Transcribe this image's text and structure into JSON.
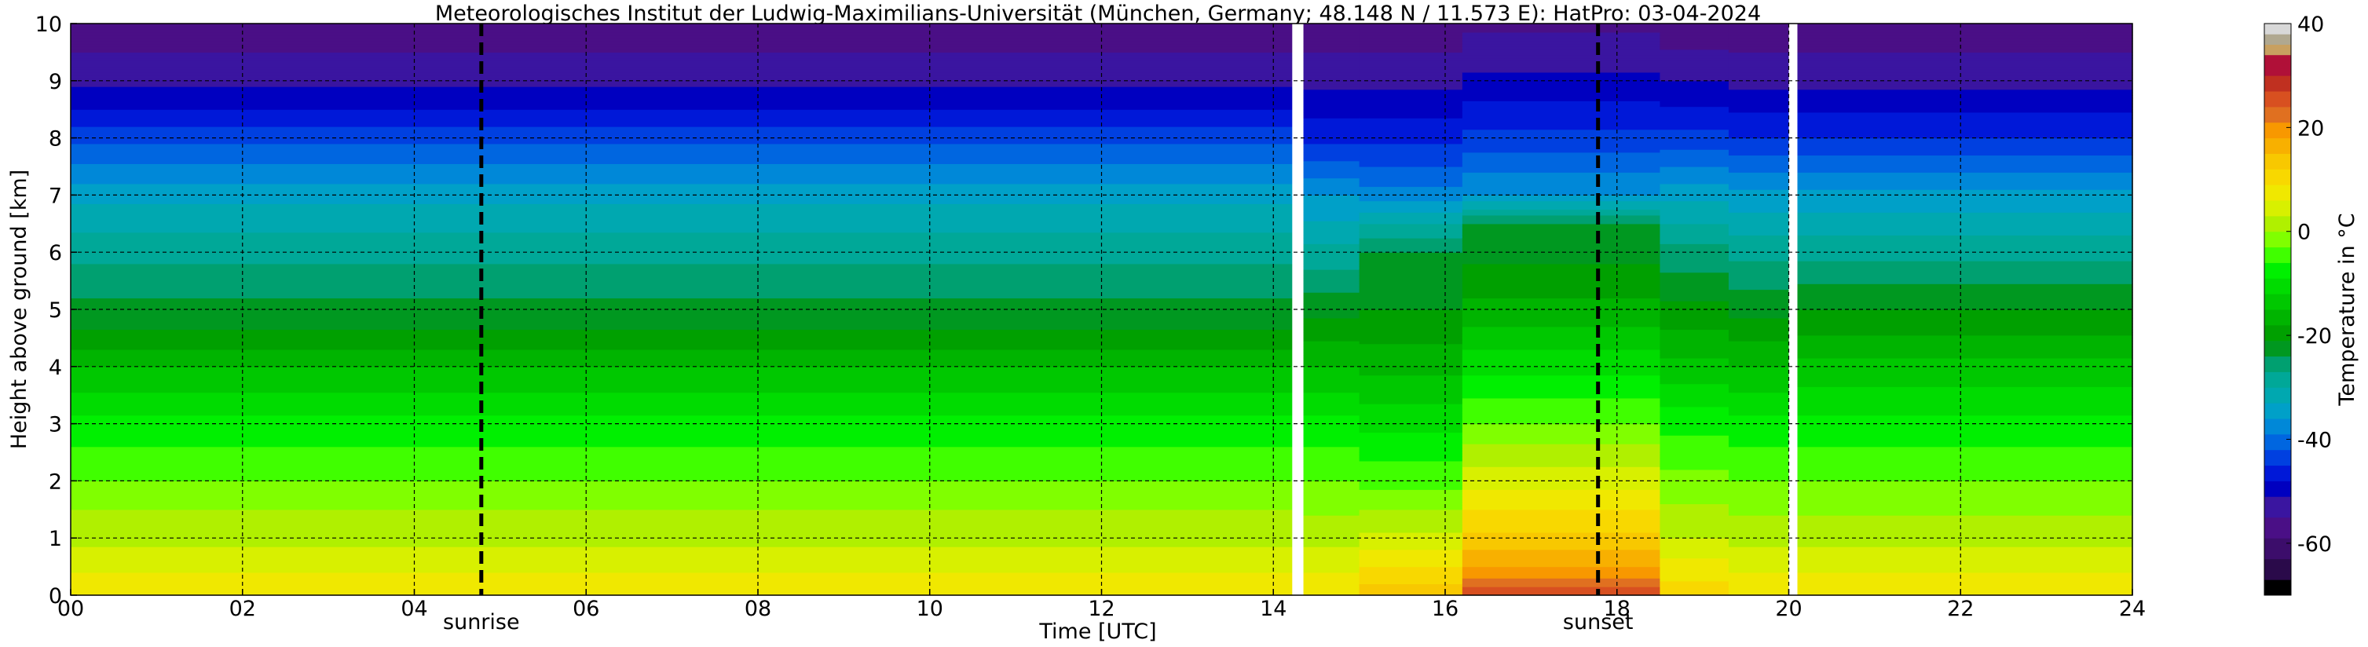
{
  "chart_data": {
    "type": "heatmap",
    "title": "Meteorologisches Institut der Ludwig-Maximilians-Universität (München, Germany; 48.148 N / 11.573 E):    HatPro: 03-04-2024",
    "xlabel": "Time [UTC]",
    "ylabel": "Height above ground [km]",
    "xlim": [
      0,
      24
    ],
    "ylim": [
      0,
      10
    ],
    "x_ticks": [
      "00",
      "02",
      "04",
      "06",
      "08",
      "10",
      "12",
      "14",
      "16",
      "18",
      "20",
      "22",
      "24"
    ],
    "y_ticks": [
      "0",
      "1",
      "2",
      "3",
      "4",
      "5",
      "6",
      "7",
      "8",
      "9",
      "10"
    ],
    "grid": true,
    "colorbar": {
      "label": "Temperature in °C",
      "range": [
        -70,
        40
      ],
      "ticks": [
        "-60",
        "-40",
        "-20",
        "0",
        "20",
        "40"
      ],
      "colors": [
        {
          "from": -70,
          "to": -67,
          "color": "#000000"
        },
        {
          "from": -67,
          "to": -63,
          "color": "#2a0a4a"
        },
        {
          "from": -63,
          "to": -59,
          "color": "#3c0d6b"
        },
        {
          "from": -59,
          "to": -55,
          "color": "#4a0f86"
        },
        {
          "from": -55,
          "to": -51,
          "color": "#3a15a0"
        },
        {
          "from": -51,
          "to": -48,
          "color": "#0000c0"
        },
        {
          "from": -48,
          "to": -45,
          "color": "#0018d8"
        },
        {
          "from": -45,
          "to": -42,
          "color": "#0040e0"
        },
        {
          "from": -42,
          "to": -39,
          "color": "#0066e0"
        },
        {
          "from": -39,
          "to": -36,
          "color": "#0088d8"
        },
        {
          "from": -36,
          "to": -33,
          "color": "#00a0c8"
        },
        {
          "from": -33,
          "to": -30,
          "color": "#00a8b0"
        },
        {
          "from": -30,
          "to": -27,
          "color": "#00a898"
        },
        {
          "from": -27,
          "to": -24,
          "color": "#00a070"
        },
        {
          "from": -24,
          "to": -21,
          "color": "#009820"
        },
        {
          "from": -21,
          "to": -18,
          "color": "#00a000"
        },
        {
          "from": -18,
          "to": -15,
          "color": "#00b400"
        },
        {
          "from": -15,
          "to": -12,
          "color": "#00c800"
        },
        {
          "from": -12,
          "to": -9,
          "color": "#00dc00"
        },
        {
          "from": -9,
          "to": -6,
          "color": "#00f000"
        },
        {
          "from": -6,
          "to": -3,
          "color": "#40ff00"
        },
        {
          "from": -3,
          "to": 0,
          "color": "#80ff00"
        },
        {
          "from": 0,
          "to": 3,
          "color": "#b0f000"
        },
        {
          "from": 3,
          "to": 6,
          "color": "#d8f000"
        },
        {
          "from": 6,
          "to": 9,
          "color": "#f0e800"
        },
        {
          "from": 9,
          "to": 12,
          "color": "#f8d800"
        },
        {
          "from": 12,
          "to": 15,
          "color": "#f8c800"
        },
        {
          "from": 15,
          "to": 18,
          "color": "#f8b000"
        },
        {
          "from": 18,
          "to": 21,
          "color": "#f89800"
        },
        {
          "from": 21,
          "to": 24,
          "color": "#e07020"
        },
        {
          "from": 24,
          "to": 27,
          "color": "#d85020"
        },
        {
          "from": 27,
          "to": 30,
          "color": "#c03020"
        },
        {
          "from": 30,
          "to": 34,
          "color": "#b01038"
        },
        {
          "from": 34,
          "to": 36,
          "color": "#c8a060"
        },
        {
          "from": 36,
          "to": 38,
          "color": "#b0a890"
        },
        {
          "from": 38,
          "to": 40,
          "color": "#d8d8d8"
        }
      ]
    },
    "annotations": [
      {
        "label": "sunrise",
        "x": 4.78
      },
      {
        "label": "sunset",
        "x": 17.78
      }
    ],
    "data_gaps": [
      {
        "from": 14.22,
        "to": 14.35
      },
      {
        "from": 20.0,
        "to": 20.1
      }
    ],
    "time_periods": [
      {
        "start": 0,
        "end": 14.22,
        "profile": [
          [
            0,
            9
          ],
          [
            0.5,
            5
          ],
          [
            1,
            2
          ],
          [
            1.5,
            0
          ],
          [
            2,
            -3
          ],
          [
            3,
            -8
          ],
          [
            4,
            -15
          ],
          [
            4.5,
            -20
          ],
          [
            5,
            -23
          ],
          [
            6,
            -28
          ],
          [
            7,
            -34
          ],
          [
            8,
            -43
          ],
          [
            8.5,
            -48
          ],
          [
            9,
            -52
          ],
          [
            10,
            -58
          ]
        ]
      },
      {
        "start": 14.35,
        "end": 15.0,
        "profile": [
          [
            0,
            9
          ],
          [
            0.5,
            5
          ],
          [
            1,
            2
          ],
          [
            2,
            -3
          ],
          [
            3,
            -8
          ],
          [
            4,
            -15
          ],
          [
            5,
            -22
          ],
          [
            6,
            -29
          ],
          [
            7,
            -36
          ],
          [
            8,
            -46
          ],
          [
            9,
            -52
          ],
          [
            10,
            -58
          ]
        ]
      },
      {
        "start": 15.0,
        "end": 16.2,
        "profile": [
          [
            0,
            14
          ],
          [
            0.5,
            9
          ],
          [
            1,
            4
          ],
          [
            1.5,
            0
          ],
          [
            2,
            -4
          ],
          [
            3,
            -10
          ],
          [
            4,
            -16
          ],
          [
            5,
            -21
          ],
          [
            6,
            -24
          ],
          [
            6.5,
            -30
          ],
          [
            7,
            -38
          ],
          [
            8,
            -46
          ],
          [
            9,
            -52
          ],
          [
            10,
            -58
          ]
        ]
      },
      {
        "start": 16.2,
        "end": 18.5,
        "profile": [
          [
            0,
            26
          ],
          [
            0.2,
            23
          ],
          [
            0.5,
            18
          ],
          [
            1,
            13
          ],
          [
            1.5,
            9
          ],
          [
            2,
            5
          ],
          [
            2.5,
            1
          ],
          [
            3,
            -3
          ],
          [
            4,
            -10
          ],
          [
            5,
            -17
          ],
          [
            6,
            -22
          ],
          [
            6.5,
            -24
          ],
          [
            7,
            -36
          ],
          [
            8,
            -44
          ],
          [
            9,
            -50
          ],
          [
            10,
            -56
          ]
        ]
      },
      {
        "start": 18.5,
        "end": 19.3,
        "profile": [
          [
            0,
            11
          ],
          [
            0.5,
            7
          ],
          [
            1,
            3
          ],
          [
            2,
            -2
          ],
          [
            3,
            -7
          ],
          [
            4,
            -14
          ],
          [
            5,
            -20
          ],
          [
            6,
            -26
          ],
          [
            7,
            -34
          ],
          [
            8,
            -44
          ],
          [
            9,
            -51
          ],
          [
            10,
            -58
          ]
        ]
      },
      {
        "start": 19.3,
        "end": 20.0,
        "profile": [
          [
            0,
            9
          ],
          [
            0.5,
            5
          ],
          [
            1,
            2
          ],
          [
            2,
            -3
          ],
          [
            3,
            -8
          ],
          [
            4,
            -15
          ],
          [
            5,
            -22
          ],
          [
            6,
            -28
          ],
          [
            7,
            -35
          ],
          [
            8,
            -45
          ],
          [
            9,
            -52
          ],
          [
            10,
            -58
          ]
        ]
      },
      {
        "start": 20.1,
        "end": 24,
        "profile": [
          [
            0,
            9
          ],
          [
            0.5,
            5
          ],
          [
            1,
            2
          ],
          [
            2,
            -3
          ],
          [
            3,
            -8
          ],
          [
            4,
            -14
          ],
          [
            5,
            -21
          ],
          [
            6,
            -28
          ],
          [
            7,
            -35
          ],
          [
            8,
            -45
          ],
          [
            9,
            -52
          ],
          [
            10,
            -58
          ]
        ]
      }
    ]
  }
}
